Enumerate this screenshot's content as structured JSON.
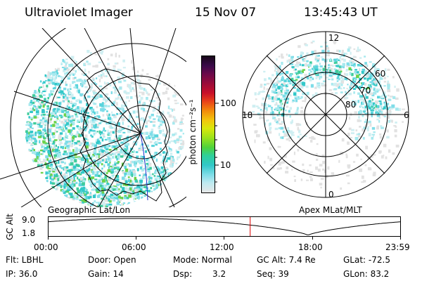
{
  "header": {
    "instrument": "Ultraviolet Imager",
    "date": "15 Nov 07",
    "time": "13:45:43 UT"
  },
  "colorbar": {
    "unit_label": "photon cm⁻²s⁻¹",
    "ticks": [
      "100",
      "10"
    ],
    "colors": [
      "#e8e8e8",
      "#bfeaf0",
      "#7fdde8",
      "#32c8c8",
      "#2fd09a",
      "#4ed23c",
      "#9ae21c",
      "#d8e80c",
      "#f2c60c",
      "#f28a0a",
      "#e8401a",
      "#c8102a",
      "#9a0c3a",
      "#6a0a4a",
      "#3a0a4a",
      "#180818"
    ]
  },
  "left_map": {
    "caption": "Geographic Lat/Lon"
  },
  "right_map": {
    "caption": "Apex MLat/MLT",
    "mlt_labels": {
      "top": "12",
      "left": "18",
      "right": "6",
      "bottom": "0"
    },
    "lat_labels": [
      "60",
      "70",
      "80"
    ]
  },
  "timeline": {
    "ylabel": "GC Alt",
    "yticks": [
      "9.0",
      "1.8"
    ],
    "xticks": [
      "00:00",
      "06:00",
      "12:00",
      "18:00",
      "23:59"
    ],
    "current_marker_hours": 13.76
  },
  "footer": {
    "flt": "Flt: LBHL",
    "door": "Door: Open",
    "mode": "Mode: Normal",
    "gc_alt": "GC Alt: 7.4 Re",
    "glat": "GLat: -72.5",
    "ip": "IP: 36.0",
    "gain": "Gain: 14",
    "dsp_label": "Dsp:",
    "dsp_value": "3.2",
    "seq": "Seq: 39",
    "glon": "GLon: 83.2"
  }
}
